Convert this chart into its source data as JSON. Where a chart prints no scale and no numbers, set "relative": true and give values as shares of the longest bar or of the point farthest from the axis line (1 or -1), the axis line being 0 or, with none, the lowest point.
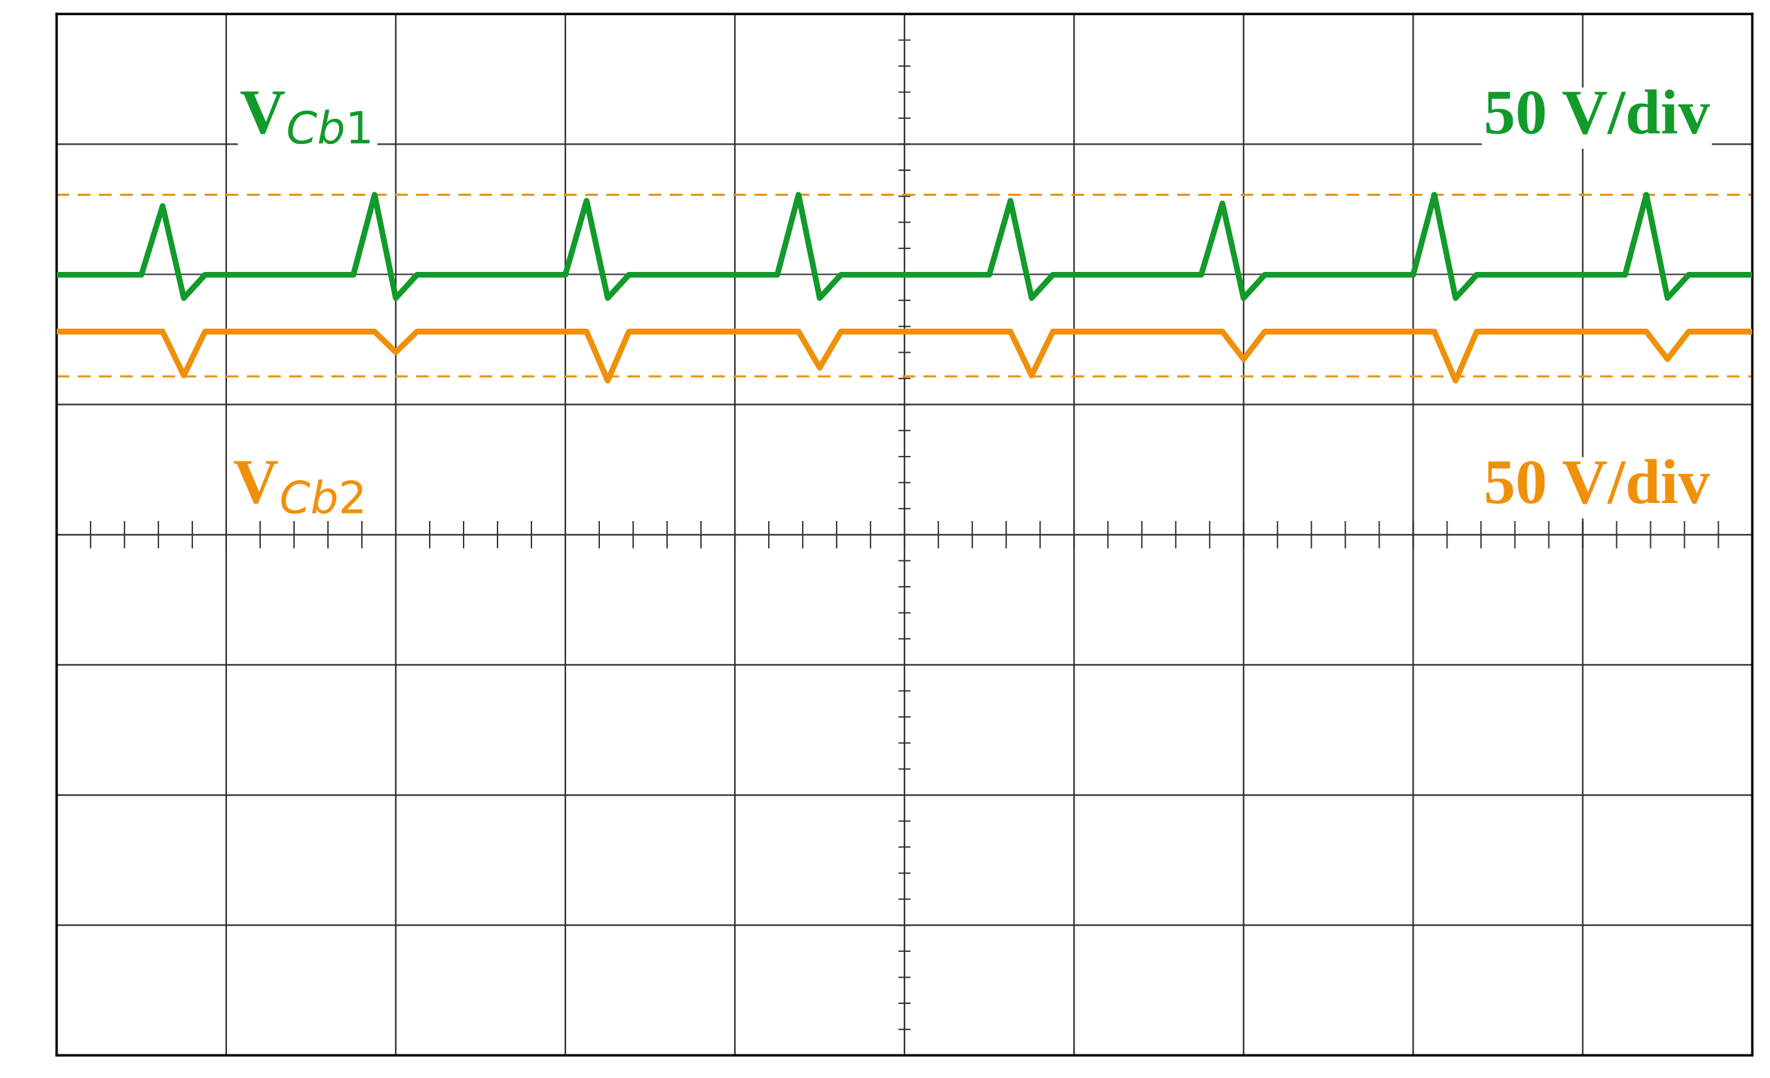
{
  "chart_data": {
    "type": "line",
    "relative": true,
    "grid": true,
    "categories": [
      null,
      null,
      null,
      null,
      null,
      null,
      null,
      null,
      null,
      null,
      null,
      null,
      null,
      null,
      null,
      null,
      null,
      null,
      null,
      null,
      null,
      null,
      null,
      null,
      null,
      null,
      null,
      null,
      null,
      null,
      null,
      null,
      null,
      null,
      null,
      null,
      null,
      null,
      null,
      null,
      null,
      null,
      null,
      null,
      null,
      null,
      null,
      null,
      null,
      null,
      null,
      null,
      null,
      null,
      null,
      null,
      null,
      null,
      null,
      null,
      null,
      null,
      null,
      null,
      null,
      null,
      null,
      null,
      null,
      null,
      null,
      null,
      null,
      null,
      null,
      null,
      null,
      null,
      null,
      null,
      null
    ],
    "series": [
      {
        "color": "#129a2a",
        "values": [
          0.907,
          0.907,
          0.907,
          0.907,
          0.907,
          0.987,
          0.88,
          0.907,
          0.907,
          0.907,
          0.907,
          0.907,
          0.907,
          0.907,
          0.907,
          1.0,
          0.88,
          0.907,
          0.907,
          0.907,
          0.907,
          0.907,
          0.907,
          0.907,
          0.907,
          0.993,
          0.88,
          0.907,
          0.907,
          0.907,
          0.907,
          0.907,
          0.907,
          0.907,
          0.907,
          1.0,
          0.88,
          0.907,
          0.907,
          0.907,
          0.907,
          0.907,
          0.907,
          0.907,
          0.907,
          0.993,
          0.88,
          0.907,
          0.907,
          0.907,
          0.907,
          0.907,
          0.907,
          0.907,
          0.907,
          0.99,
          0.88,
          0.907,
          0.907,
          0.907,
          0.907,
          0.907,
          0.907,
          0.907,
          0.907,
          1.0,
          0.88,
          0.907,
          0.907,
          0.907,
          0.907,
          0.907,
          0.907,
          0.907,
          0.907,
          1.0,
          0.88,
          0.907,
          0.907,
          0.907,
          0.907
        ]
      },
      {
        "color": "#f0900a",
        "values": [
          0.841,
          0.841,
          0.841,
          0.841,
          0.841,
          0.841,
          0.79,
          0.841,
          0.841,
          0.841,
          0.841,
          0.841,
          0.841,
          0.841,
          0.841,
          0.841,
          0.817,
          0.841,
          0.841,
          0.841,
          0.841,
          0.841,
          0.841,
          0.841,
          0.841,
          0.841,
          0.784,
          0.841,
          0.841,
          0.841,
          0.841,
          0.841,
          0.841,
          0.841,
          0.841,
          0.841,
          0.799,
          0.841,
          0.841,
          0.841,
          0.841,
          0.841,
          0.841,
          0.841,
          0.841,
          0.841,
          0.79,
          0.841,
          0.841,
          0.841,
          0.841,
          0.841,
          0.841,
          0.841,
          0.841,
          0.841,
          0.809,
          0.841,
          0.841,
          0.841,
          0.841,
          0.841,
          0.841,
          0.841,
          0.841,
          0.841,
          0.784,
          0.841,
          0.841,
          0.841,
          0.841,
          0.841,
          0.841,
          0.841,
          0.841,
          0.841,
          0.809,
          0.841,
          0.841,
          0.841,
          0.841
        ]
      }
    ],
    "ref_lines": [
      {
        "axis": "y",
        "value": 1.0,
        "color": "#f0900a",
        "line_style": "dashed"
      },
      {
        "axis": "y",
        "value": 0.789,
        "color": "#f0900a",
        "line_style": "dashed"
      }
    ],
    "annotations": [
      "V$_{Cb1}$",
      "50 V/div",
      "V$_{Cb2}$",
      "50 V/div"
    ]
  }
}
